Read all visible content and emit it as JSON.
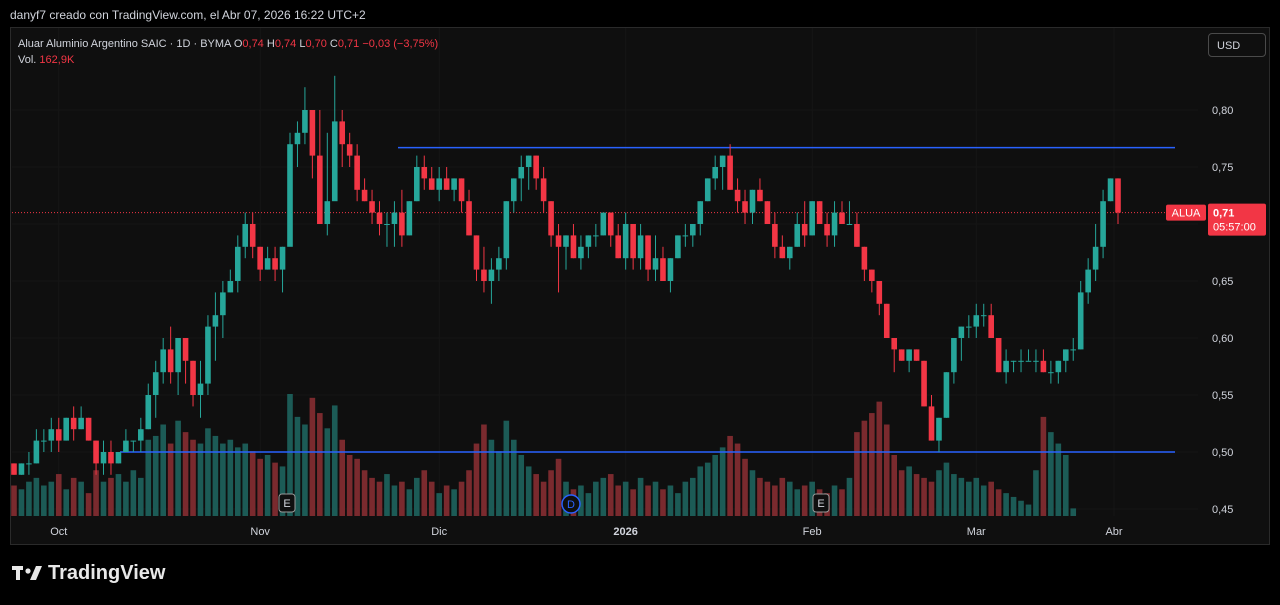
{
  "header": {
    "caption": "danyf7 creado con TradingView.com, el Abr 07, 2026 16:22 UTC+2"
  },
  "legend": {
    "title": "Aluar Aluminio Argentino SAIC · 1D · BYMA",
    "o_label": "O",
    "o_value": "0,74",
    "h_label": "H",
    "h_value": "0,74",
    "l_label": "L",
    "l_value": "0,70",
    "c_label": "C",
    "c_value": "0,71",
    "change": "−0,03 (−3,75%)",
    "vol_label": "Vol.",
    "vol_value": "162,9K"
  },
  "currency_button": "USD",
  "price_tag": {
    "symbol": "ALUA",
    "price": "0,71",
    "countdown": "05:57:00"
  },
  "brand": {
    "name": "TradingView"
  },
  "colors": {
    "up": "#26a69a",
    "down": "#f23645",
    "vol_up": "#1c5b56",
    "vol_down": "#7a2a2e",
    "hline": "#2962ff",
    "last": "#f23645"
  },
  "chart_data": {
    "type": "candlestick",
    "ylim": [
      0.45,
      0.83
    ],
    "y_ticks": [
      "0,45",
      "0,50",
      "0,55",
      "0,60",
      "0,65",
      "0,70",
      "0,75",
      "0,80"
    ],
    "x_labels": [
      "Oct",
      "Nov",
      "Dic",
      "2026",
      "Feb",
      "Mar",
      "Abr"
    ],
    "horizontal_lines": [
      0.767,
      0.5
    ],
    "event_markers": [
      "E",
      "D",
      "E"
    ],
    "last_price": 0.71,
    "candles_ohlc": [
      [
        0.49,
        0.49,
        0.48,
        0.48
      ],
      [
        0.48,
        0.49,
        0.48,
        0.49
      ],
      [
        0.49,
        0.5,
        0.48,
        0.49
      ],
      [
        0.49,
        0.52,
        0.49,
        0.51
      ],
      [
        0.51,
        0.52,
        0.5,
        0.51
      ],
      [
        0.51,
        0.53,
        0.5,
        0.52
      ],
      [
        0.52,
        0.53,
        0.5,
        0.51
      ],
      [
        0.51,
        0.53,
        0.51,
        0.53
      ],
      [
        0.53,
        0.54,
        0.51,
        0.52
      ],
      [
        0.52,
        0.54,
        0.52,
        0.53
      ],
      [
        0.53,
        0.53,
        0.51,
        0.51
      ],
      [
        0.51,
        0.51,
        0.48,
        0.49
      ],
      [
        0.49,
        0.51,
        0.48,
        0.5
      ],
      [
        0.5,
        0.51,
        0.48,
        0.49
      ],
      [
        0.49,
        0.5,
        0.49,
        0.5
      ],
      [
        0.5,
        0.52,
        0.5,
        0.51
      ],
      [
        0.51,
        0.51,
        0.5,
        0.51
      ],
      [
        0.51,
        0.53,
        0.5,
        0.52
      ],
      [
        0.52,
        0.56,
        0.52,
        0.55
      ],
      [
        0.55,
        0.58,
        0.53,
        0.57
      ],
      [
        0.57,
        0.6,
        0.56,
        0.59
      ],
      [
        0.59,
        0.61,
        0.56,
        0.57
      ],
      [
        0.57,
        0.6,
        0.55,
        0.6
      ],
      [
        0.6,
        0.6,
        0.56,
        0.58
      ],
      [
        0.58,
        0.58,
        0.54,
        0.55
      ],
      [
        0.55,
        0.58,
        0.53,
        0.56
      ],
      [
        0.56,
        0.62,
        0.55,
        0.61
      ],
      [
        0.61,
        0.64,
        0.58,
        0.62
      ],
      [
        0.62,
        0.65,
        0.6,
        0.64
      ],
      [
        0.64,
        0.66,
        0.64,
        0.65
      ],
      [
        0.65,
        0.69,
        0.64,
        0.68
      ],
      [
        0.68,
        0.71,
        0.67,
        0.7
      ],
      [
        0.7,
        0.71,
        0.67,
        0.68
      ],
      [
        0.68,
        0.68,
        0.65,
        0.66
      ],
      [
        0.66,
        0.68,
        0.66,
        0.67
      ],
      [
        0.67,
        0.68,
        0.65,
        0.66
      ],
      [
        0.66,
        0.68,
        0.64,
        0.68
      ],
      [
        0.68,
        0.78,
        0.7,
        0.77
      ],
      [
        0.77,
        0.79,
        0.75,
        0.78
      ],
      [
        0.78,
        0.82,
        0.77,
        0.8
      ],
      [
        0.8,
        0.8,
        0.74,
        0.76
      ],
      [
        0.76,
        0.8,
        0.7,
        0.7
      ],
      [
        0.7,
        0.78,
        0.69,
        0.72
      ],
      [
        0.72,
        0.83,
        0.73,
        0.79
      ],
      [
        0.79,
        0.8,
        0.75,
        0.77
      ],
      [
        0.77,
        0.78,
        0.75,
        0.76
      ],
      [
        0.76,
        0.77,
        0.72,
        0.73
      ],
      [
        0.73,
        0.74,
        0.72,
        0.72
      ],
      [
        0.72,
        0.73,
        0.7,
        0.71
      ],
      [
        0.71,
        0.72,
        0.69,
        0.7
      ],
      [
        0.7,
        0.71,
        0.68,
        0.7
      ],
      [
        0.7,
        0.72,
        0.68,
        0.71
      ],
      [
        0.71,
        0.73,
        0.68,
        0.69
      ],
      [
        0.69,
        0.72,
        0.69,
        0.72
      ],
      [
        0.72,
        0.76,
        0.72,
        0.75
      ],
      [
        0.75,
        0.76,
        0.73,
        0.74
      ],
      [
        0.74,
        0.75,
        0.73,
        0.73
      ],
      [
        0.73,
        0.75,
        0.72,
        0.74
      ],
      [
        0.74,
        0.75,
        0.73,
        0.73
      ],
      [
        0.73,
        0.74,
        0.72,
        0.74
      ],
      [
        0.74,
        0.74,
        0.71,
        0.72
      ],
      [
        0.72,
        0.73,
        0.69,
        0.69
      ],
      [
        0.69,
        0.69,
        0.65,
        0.66
      ],
      [
        0.66,
        0.68,
        0.64,
        0.65
      ],
      [
        0.65,
        0.67,
        0.63,
        0.66
      ],
      [
        0.66,
        0.68,
        0.65,
        0.67
      ],
      [
        0.67,
        0.72,
        0.66,
        0.72
      ],
      [
        0.72,
        0.74,
        0.71,
        0.74
      ],
      [
        0.74,
        0.76,
        0.72,
        0.75
      ],
      [
        0.75,
        0.76,
        0.73,
        0.76
      ],
      [
        0.76,
        0.76,
        0.73,
        0.74
      ],
      [
        0.74,
        0.75,
        0.71,
        0.72
      ],
      [
        0.72,
        0.72,
        0.68,
        0.69
      ],
      [
        0.69,
        0.7,
        0.64,
        0.68
      ],
      [
        0.68,
        0.69,
        0.66,
        0.69
      ],
      [
        0.69,
        0.7,
        0.67,
        0.67
      ],
      [
        0.67,
        0.69,
        0.66,
        0.68
      ],
      [
        0.68,
        0.69,
        0.67,
        0.69
      ],
      [
        0.69,
        0.7,
        0.68,
        0.69
      ],
      [
        0.69,
        0.71,
        0.69,
        0.71
      ],
      [
        0.71,
        0.71,
        0.68,
        0.69
      ],
      [
        0.69,
        0.7,
        0.67,
        0.67
      ],
      [
        0.67,
        0.71,
        0.66,
        0.7
      ],
      [
        0.7,
        0.7,
        0.66,
        0.67
      ],
      [
        0.67,
        0.7,
        0.66,
        0.69
      ],
      [
        0.69,
        0.69,
        0.65,
        0.66
      ],
      [
        0.66,
        0.69,
        0.65,
        0.67
      ],
      [
        0.67,
        0.68,
        0.65,
        0.65
      ],
      [
        0.65,
        0.67,
        0.64,
        0.67
      ],
      [
        0.67,
        0.69,
        0.67,
        0.69
      ],
      [
        0.69,
        0.7,
        0.68,
        0.69
      ],
      [
        0.69,
        0.7,
        0.68,
        0.7
      ],
      [
        0.7,
        0.72,
        0.69,
        0.72
      ],
      [
        0.72,
        0.74,
        0.72,
        0.74
      ],
      [
        0.74,
        0.76,
        0.73,
        0.75
      ],
      [
        0.75,
        0.76,
        0.73,
        0.76
      ],
      [
        0.76,
        0.77,
        0.73,
        0.73
      ],
      [
        0.73,
        0.74,
        0.71,
        0.72
      ],
      [
        0.72,
        0.73,
        0.7,
        0.71
      ],
      [
        0.71,
        0.73,
        0.7,
        0.73
      ],
      [
        0.73,
        0.74,
        0.72,
        0.72
      ],
      [
        0.72,
        0.72,
        0.7,
        0.7
      ],
      [
        0.7,
        0.71,
        0.67,
        0.68
      ],
      [
        0.68,
        0.69,
        0.67,
        0.67
      ],
      [
        0.67,
        0.68,
        0.66,
        0.68
      ],
      [
        0.68,
        0.71,
        0.68,
        0.7
      ],
      [
        0.7,
        0.72,
        0.68,
        0.69
      ],
      [
        0.69,
        0.72,
        0.69,
        0.72
      ],
      [
        0.72,
        0.72,
        0.7,
        0.7
      ],
      [
        0.7,
        0.71,
        0.68,
        0.69
      ],
      [
        0.69,
        0.72,
        0.68,
        0.71
      ],
      [
        0.71,
        0.72,
        0.7,
        0.7
      ],
      [
        0.7,
        0.72,
        0.7,
        0.7
      ],
      [
        0.7,
        0.71,
        0.68,
        0.68
      ],
      [
        0.68,
        0.68,
        0.65,
        0.66
      ],
      [
        0.66,
        0.66,
        0.64,
        0.65
      ],
      [
        0.65,
        0.65,
        0.62,
        0.63
      ],
      [
        0.63,
        0.63,
        0.6,
        0.6
      ],
      [
        0.6,
        0.6,
        0.57,
        0.59
      ],
      [
        0.59,
        0.59,
        0.58,
        0.58
      ],
      [
        0.58,
        0.59,
        0.57,
        0.59
      ],
      [
        0.59,
        0.59,
        0.58,
        0.58
      ],
      [
        0.58,
        0.58,
        0.54,
        0.54
      ],
      [
        0.54,
        0.55,
        0.51,
        0.51
      ],
      [
        0.51,
        0.53,
        0.5,
        0.53
      ],
      [
        0.53,
        0.57,
        0.53,
        0.57
      ],
      [
        0.57,
        0.6,
        0.56,
        0.6
      ],
      [
        0.6,
        0.61,
        0.58,
        0.61
      ],
      [
        0.61,
        0.62,
        0.6,
        0.61
      ],
      [
        0.61,
        0.63,
        0.6,
        0.62
      ],
      [
        0.62,
        0.63,
        0.61,
        0.62
      ],
      [
        0.62,
        0.63,
        0.6,
        0.6
      ],
      [
        0.6,
        0.6,
        0.57,
        0.57
      ],
      [
        0.57,
        0.59,
        0.56,
        0.58
      ],
      [
        0.58,
        0.58,
        0.57,
        0.58
      ],
      [
        0.58,
        0.59,
        0.57,
        0.58
      ],
      [
        0.58,
        0.59,
        0.58,
        0.58
      ],
      [
        0.58,
        0.59,
        0.57,
        0.58
      ],
      [
        0.58,
        0.59,
        0.57,
        0.57
      ],
      [
        0.57,
        0.58,
        0.56,
        0.57
      ],
      [
        0.57,
        0.58,
        0.56,
        0.58
      ],
      [
        0.58,
        0.59,
        0.57,
        0.59
      ],
      [
        0.59,
        0.6,
        0.58,
        0.59
      ],
      [
        0.59,
        0.65,
        0.59,
        0.64
      ],
      [
        0.64,
        0.67,
        0.63,
        0.66
      ],
      [
        0.66,
        0.7,
        0.65,
        0.68
      ],
      [
        0.68,
        0.73,
        0.67,
        0.72
      ],
      [
        0.72,
        0.74,
        0.72,
        0.74
      ],
      [
        0.74,
        0.74,
        0.7,
        0.71
      ]
    ],
    "volume": [
      0.8,
      0.7,
      0.9,
      1.0,
      0.8,
      0.9,
      1.1,
      0.7,
      1.0,
      0.9,
      0.6,
      1.2,
      0.9,
      1.0,
      1.1,
      0.9,
      1.2,
      1.0,
      2.0,
      2.1,
      2.4,
      1.9,
      2.5,
      2.2,
      2.0,
      1.9,
      2.3,
      2.1,
      1.9,
      2.0,
      1.8,
      1.9,
      1.7,
      1.5,
      1.6,
      1.4,
      1.3,
      3.2,
      2.6,
      2.4,
      3.1,
      2.7,
      2.3,
      2.9,
      2.0,
      1.6,
      1.5,
      1.2,
      1.0,
      0.9,
      1.1,
      0.8,
      0.9,
      0.7,
      1.0,
      1.2,
      0.9,
      0.6,
      0.8,
      0.7,
      0.9,
      1.2,
      1.9,
      2.4,
      2.0,
      1.7,
      2.5,
      2.0,
      1.6,
      1.3,
      1.1,
      0.9,
      1.2,
      1.5,
      0.9,
      0.7,
      0.8,
      0.6,
      0.9,
      1.0,
      1.1,
      0.8,
      0.9,
      0.7,
      1.0,
      0.8,
      0.9,
      0.7,
      0.8,
      0.6,
      0.9,
      1.0,
      1.3,
      1.4,
      1.6,
      1.8,
      2.1,
      1.9,
      1.5,
      1.2,
      1.0,
      0.9,
      0.8,
      1.0,
      0.9,
      0.7,
      0.8,
      0.9,
      0.7,
      0.6,
      0.8,
      0.7,
      1.0,
      2.2,
      2.5,
      2.7,
      3.0,
      2.4,
      1.6,
      1.2,
      1.3,
      1.1,
      1.0,
      0.9,
      1.2,
      1.4,
      1.1,
      1.0,
      0.9,
      1.0,
      0.8,
      0.9,
      0.7,
      0.6,
      0.5,
      0.4,
      0.3,
      1.2,
      2.6,
      2.2,
      1.9,
      1.6,
      0.2
    ]
  }
}
